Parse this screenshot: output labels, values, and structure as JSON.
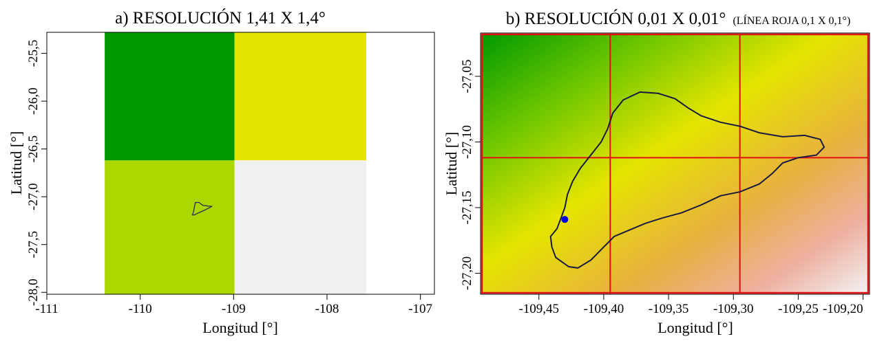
{
  "chart_data": [
    {
      "type": "heatmap",
      "panel": "a",
      "title": "a) RESOLUCIÓN 1,41 X 1,4°",
      "subtitle": "",
      "xlabel": "Longitud [°]",
      "ylabel": "Latitud [°]",
      "xlim": [
        -111.0,
        -106.85
      ],
      "ylim": [
        -28.02,
        -25.28
      ],
      "x_ticks": [
        -111,
        -110,
        -109,
        -108,
        -107
      ],
      "x_tick_labels": [
        "-111",
        "-110",
        "-109",
        "-108",
        "-107"
      ],
      "y_ticks": [
        -25.5,
        -26.0,
        -26.5,
        -27.0,
        -27.5,
        -28.0
      ],
      "y_tick_labels": [
        "-25,5",
        "-26,0",
        "-26,5",
        "-27,0",
        "-27,5",
        "-28,0"
      ],
      "grid": false,
      "cells": [
        {
          "x": [
            -110.38,
            -108.99
          ],
          "y": [
            -26.62,
            -25.28
          ],
          "color": "#009a00"
        },
        {
          "x": [
            -108.99,
            -107.58
          ],
          "y": [
            -26.62,
            -25.28
          ],
          "color": "#e5e500"
        },
        {
          "x": [
            -110.38,
            -108.99
          ],
          "y": [
            -28.02,
            -26.62
          ],
          "color": "#acd700"
        },
        {
          "x": [
            -108.99,
            -107.58
          ],
          "y": [
            -28.02,
            -26.62
          ],
          "color": "#f0f0f0"
        }
      ],
      "outline": [
        [
          -109.43,
          -27.16
        ],
        [
          -109.41,
          -27.06
        ],
        [
          -109.37,
          -27.06
        ],
        [
          -109.33,
          -27.09
        ],
        [
          -109.25,
          -27.1
        ],
        [
          -109.23,
          -27.1
        ],
        [
          -109.27,
          -27.12
        ],
        [
          -109.31,
          -27.14
        ],
        [
          -109.38,
          -27.17
        ],
        [
          -109.42,
          -27.19
        ],
        [
          -109.44,
          -27.19
        ],
        [
          -109.43,
          -27.16
        ]
      ]
    },
    {
      "type": "heatmap",
      "panel": "b",
      "title": "b) RESOLUCIÓN 0,01 X 0,01°",
      "subtitle": "(LÍNEA ROJA 0,1 X 0,1°)",
      "xlabel": "Longitud [°]",
      "ylabel": "Latitud [°]",
      "xlim": [
        -109.495,
        -109.195
      ],
      "ylim": [
        -27.216,
        -27.017
      ],
      "x_ticks": [
        -109.45,
        -109.4,
        -109.35,
        -109.3,
        -109.25,
        -109.2
      ],
      "x_tick_labels": [
        "-109,45",
        "-109,40",
        "-109,35",
        "-109,30",
        "-109,25",
        "-109,20"
      ],
      "y_ticks": [
        -27.05,
        -27.1,
        -27.15,
        -27.2
      ],
      "y_tick_labels": [
        "-27,05",
        "-27,10",
        "-27,15",
        "-27,20"
      ],
      "grid": false,
      "red_grid_lines_lon": [
        -109.395,
        -109.295
      ],
      "red_grid_lines_lat": [
        -27.112
      ],
      "red_line_color": "#e01010",
      "color_ramp": [
        "#009a00",
        "#6cc600",
        "#e5e500",
        "#e8b040",
        "#eeb0a0",
        "#f2f2f2"
      ],
      "point": {
        "lon": -109.43,
        "lat": -27.159,
        "color": "#0000e0"
      },
      "outline": [
        [
          -109.427,
          -27.195
        ],
        [
          -109.437,
          -27.188
        ],
        [
          -109.44,
          -27.18
        ],
        [
          -109.441,
          -27.172
        ],
        [
          -109.436,
          -27.166
        ],
        [
          -109.433,
          -27.158
        ],
        [
          -109.43,
          -27.15
        ],
        [
          -109.428,
          -27.14
        ],
        [
          -109.424,
          -27.13
        ],
        [
          -109.418,
          -27.12
        ],
        [
          -109.41,
          -27.11
        ],
        [
          -109.402,
          -27.1
        ],
        [
          -109.397,
          -27.09
        ],
        [
          -109.393,
          -27.078
        ],
        [
          -109.385,
          -27.068
        ],
        [
          -109.372,
          -27.062
        ],
        [
          -109.358,
          -27.063
        ],
        [
          -109.345,
          -27.067
        ],
        [
          -109.335,
          -27.074
        ],
        [
          -109.325,
          -27.08
        ],
        [
          -109.31,
          -27.085
        ],
        [
          -109.295,
          -27.088
        ],
        [
          -109.28,
          -27.093
        ],
        [
          -109.262,
          -27.096
        ],
        [
          -109.245,
          -27.095
        ],
        [
          -109.233,
          -27.098
        ],
        [
          -109.23,
          -27.104
        ],
        [
          -109.236,
          -27.11
        ],
        [
          -109.25,
          -27.112
        ],
        [
          -109.262,
          -27.116
        ],
        [
          -109.27,
          -27.124
        ],
        [
          -109.28,
          -27.132
        ],
        [
          -109.295,
          -27.138
        ],
        [
          -109.31,
          -27.141
        ],
        [
          -109.325,
          -27.148
        ],
        [
          -109.34,
          -27.154
        ],
        [
          -109.355,
          -27.158
        ],
        [
          -109.368,
          -27.162
        ],
        [
          -109.38,
          -27.167
        ],
        [
          -109.392,
          -27.172
        ],
        [
          -109.4,
          -27.18
        ],
        [
          -109.41,
          -27.19
        ],
        [
          -109.42,
          -27.196
        ],
        [
          -109.427,
          -27.195
        ]
      ]
    }
  ]
}
